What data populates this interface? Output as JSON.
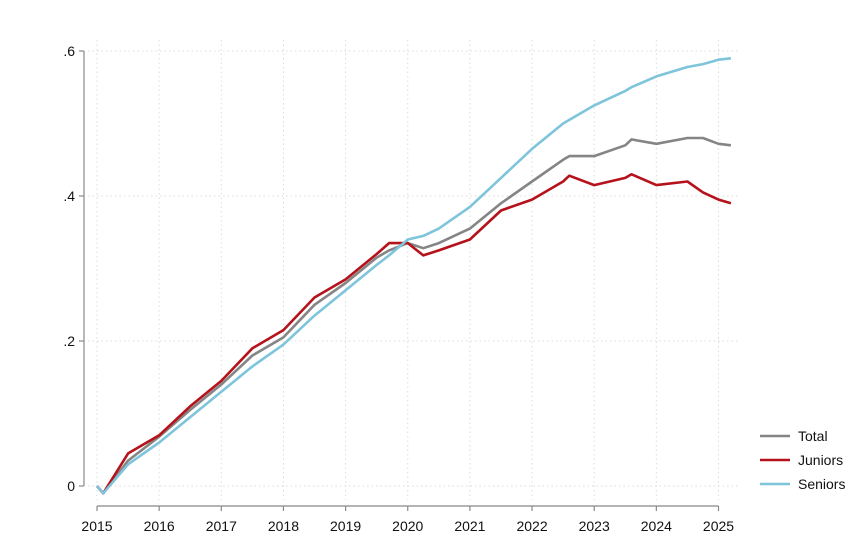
{
  "chart_data": {
    "type": "line",
    "title": "",
    "xlabel": "",
    "ylabel": "",
    "xlim": [
      2015,
      2025.2
    ],
    "ylim": [
      -0.02,
      0.6
    ],
    "x_ticks": [
      2015,
      2016,
      2017,
      2018,
      2019,
      2020,
      2021,
      2022,
      2023,
      2024,
      2025
    ],
    "x_tick_labels": [
      "2015",
      "2016",
      "2017",
      "2018",
      "2019",
      "2020",
      "2021",
      "2022",
      "2023",
      "2024",
      "2025"
    ],
    "y_ticks": [
      0,
      0.2,
      0.4,
      0.6
    ],
    "y_tick_labels": [
      "0",
      ".2",
      ".4",
      ".6"
    ],
    "grid": true,
    "legend_placement": "bottom-right",
    "x": [
      2015,
      2015.1,
      2015.5,
      2016,
      2016.5,
      2017,
      2017.5,
      2018,
      2018.5,
      2019,
      2019.5,
      2019.7,
      2020,
      2020.25,
      2020.5,
      2021,
      2021.5,
      2022,
      2022.5,
      2022.6,
      2023,
      2023.5,
      2023.6,
      2024,
      2024.5,
      2024.75,
      2025,
      2025.2
    ],
    "series": [
      {
        "name": "Total",
        "color": "#858585",
        "values": [
          0,
          -0.01,
          0.035,
          0.068,
          0.105,
          0.14,
          0.18,
          0.205,
          0.25,
          0.28,
          0.315,
          0.325,
          0.335,
          0.328,
          0.335,
          0.355,
          0.39,
          0.42,
          0.45,
          0.455,
          0.455,
          0.47,
          0.478,
          0.472,
          0.48,
          0.48,
          0.472,
          0.47
        ]
      },
      {
        "name": "Juniors",
        "color": "#b5121b",
        "values": [
          0,
          -0.01,
          0.045,
          0.07,
          0.11,
          0.145,
          0.19,
          0.215,
          0.26,
          0.285,
          0.32,
          0.335,
          0.335,
          0.318,
          0.325,
          0.34,
          0.38,
          0.395,
          0.42,
          0.428,
          0.415,
          0.425,
          0.43,
          0.415,
          0.42,
          0.405,
          0.395,
          0.39
        ]
      },
      {
        "name": "Seniors",
        "color": "#7ec4db",
        "values": [
          0,
          -0.01,
          0.03,
          0.06,
          0.095,
          0.13,
          0.165,
          0.195,
          0.235,
          0.27,
          0.305,
          0.318,
          0.34,
          0.345,
          0.355,
          0.385,
          0.425,
          0.465,
          0.5,
          0.505,
          0.525,
          0.545,
          0.55,
          0.565,
          0.578,
          0.582,
          0.588,
          0.59
        ]
      }
    ]
  }
}
